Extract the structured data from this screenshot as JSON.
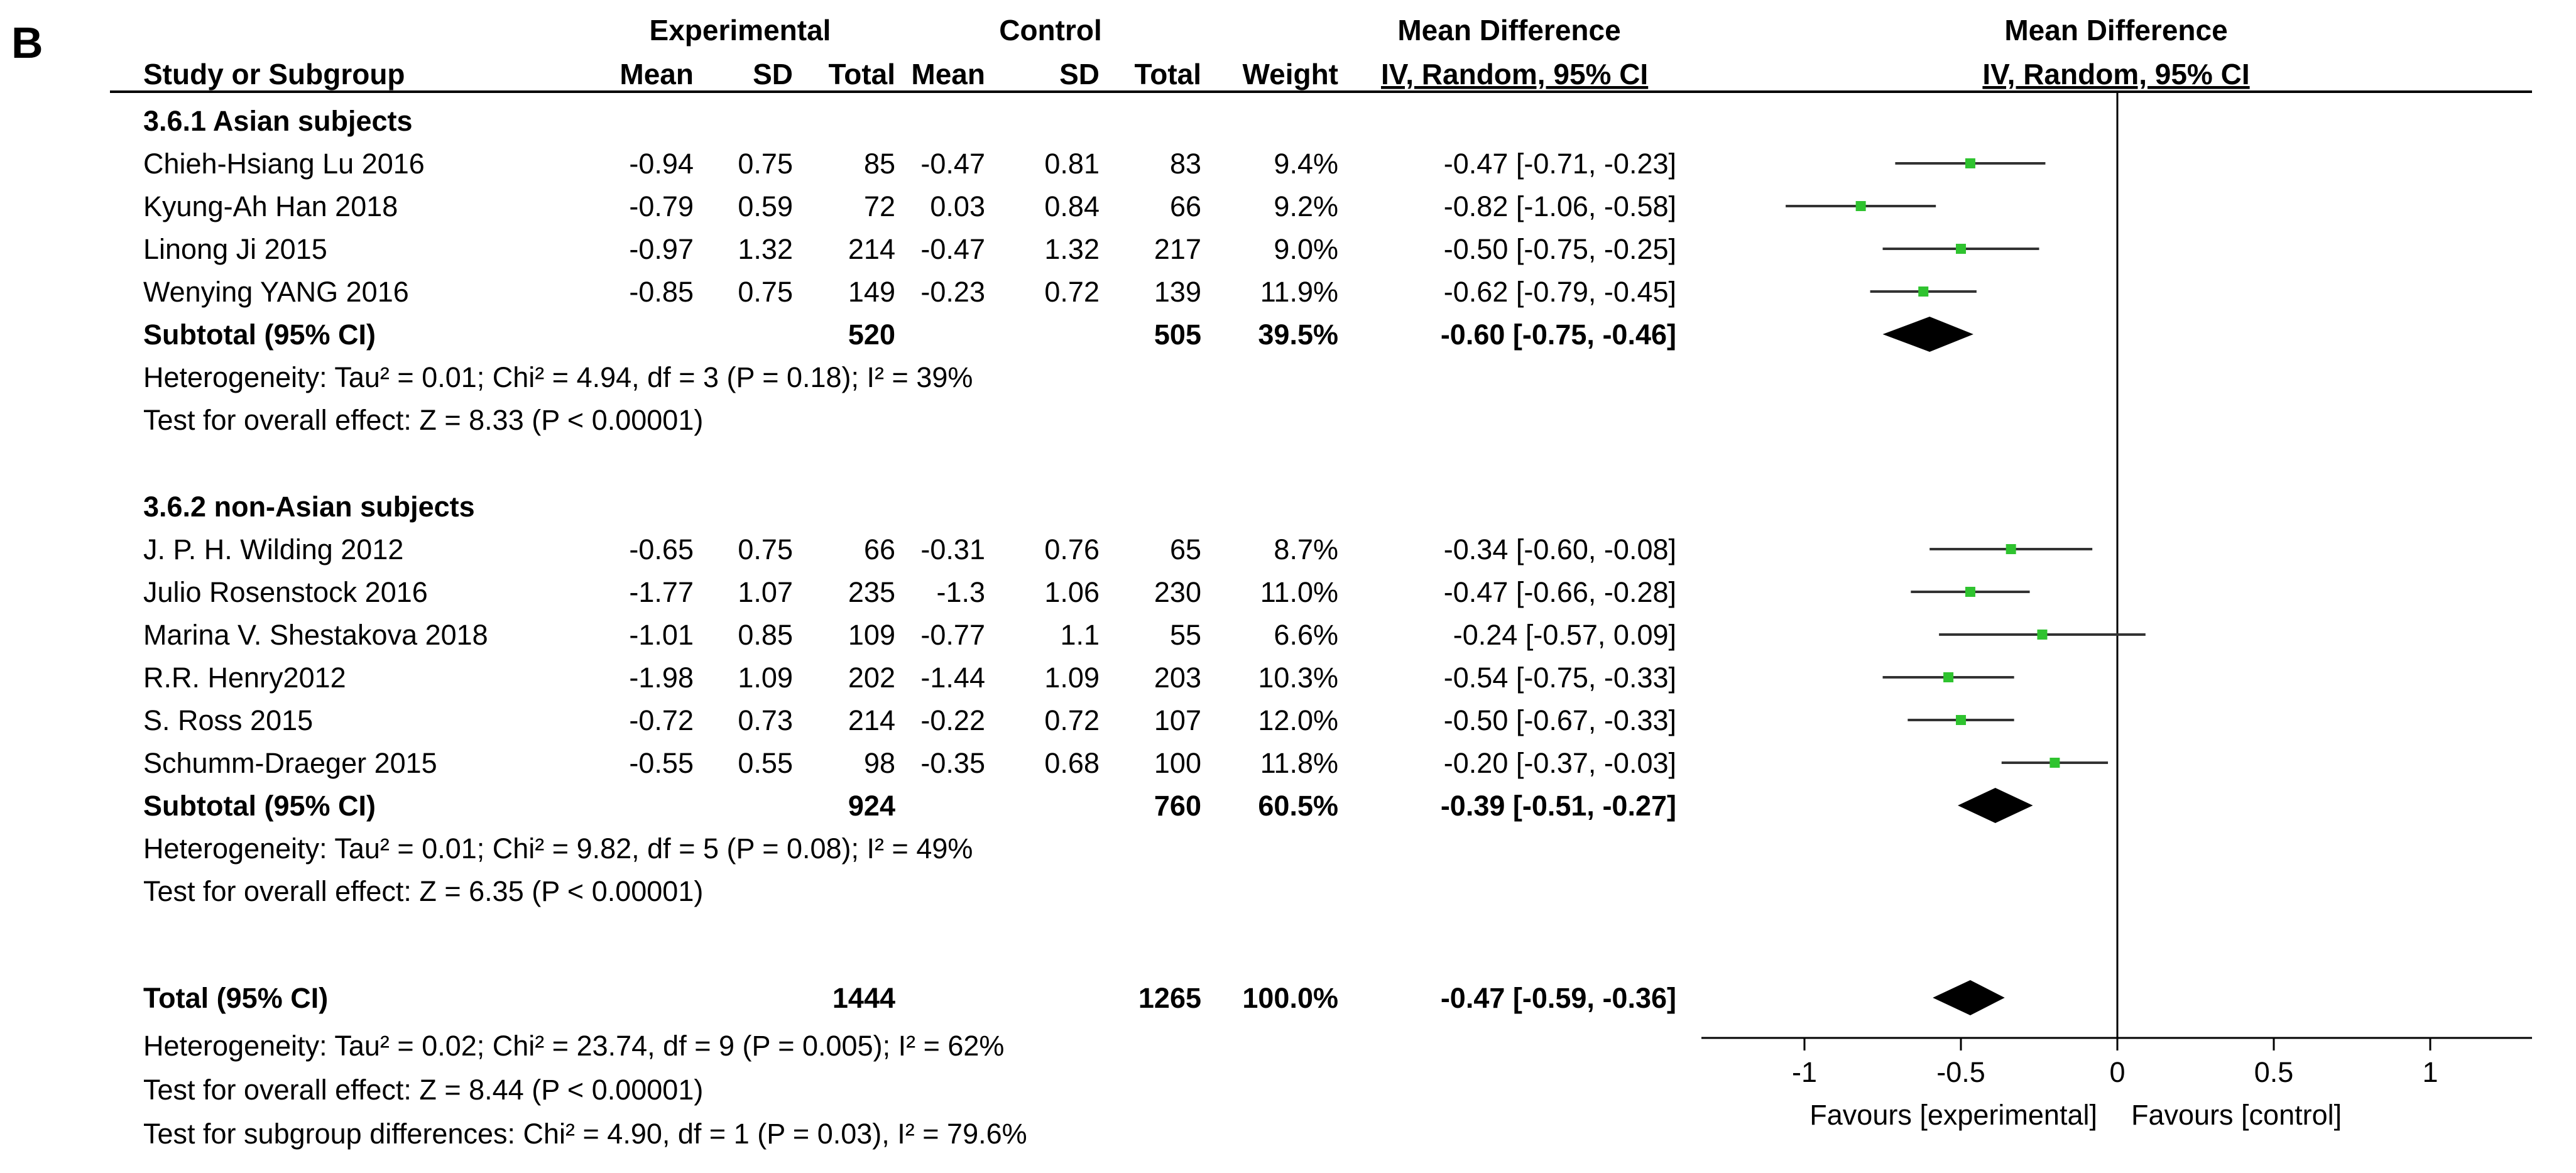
{
  "panel_label": "B",
  "header": {
    "group_experimental": "Experimental",
    "group_control": "Control",
    "group_md": "Mean Difference",
    "group_plot": "Mean Difference",
    "study": "Study or Subgroup",
    "mean": "Mean",
    "sd": "SD",
    "total": "Total",
    "weight": "Weight",
    "ci": "IV, Random, 95% CI",
    "plot_ci": "IV, Random, 95% CI"
  },
  "subgroups": [
    {
      "title": "3.6.1 Asian subjects",
      "studies": [
        {
          "name": "Chieh-Hsiang Lu  2016",
          "e_mean": "-0.94",
          "e_sd": "0.75",
          "e_total": "85",
          "c_mean": "-0.47",
          "c_sd": "0.81",
          "c_total": "83",
          "weight": "9.4%",
          "ci_text": "-0.47 [-0.71, -0.23]"
        },
        {
          "name": "Kyung-Ah Han  2018",
          "e_mean": "-0.79",
          "e_sd": "0.59",
          "e_total": "72",
          "c_mean": "0.03",
          "c_sd": "0.84",
          "c_total": "66",
          "weight": "9.2%",
          "ci_text": "-0.82 [-1.06, -0.58]"
        },
        {
          "name": "Linong Ji  2015",
          "e_mean": "-0.97",
          "e_sd": "1.32",
          "e_total": "214",
          "c_mean": "-0.47",
          "c_sd": "1.32",
          "c_total": "217",
          "weight": "9.0%",
          "ci_text": "-0.50 [-0.75, -0.25]"
        },
        {
          "name": "Wenying YANG  2016",
          "e_mean": "-0.85",
          "e_sd": "0.75",
          "e_total": "149",
          "c_mean": "-0.23",
          "c_sd": "0.72",
          "c_total": "139",
          "weight": "11.9%",
          "ci_text": "-0.62 [-0.79, -0.45]"
        }
      ],
      "subtotal": {
        "label": "Subtotal (95% CI)",
        "e_total": "520",
        "c_total": "505",
        "weight": "39.5%",
        "ci_text": "-0.60 [-0.75, -0.46]"
      },
      "heterogeneity": "Heterogeneity: Tau² = 0.01; Chi² = 4.94, df = 3 (P = 0.18); I² = 39%",
      "overall": "Test for overall effect: Z = 8.33 (P < 0.00001)"
    },
    {
      "title": "3.6.2 non-Asian subjects",
      "studies": [
        {
          "name": "J. P. H. Wilding  2012",
          "e_mean": "-0.65",
          "e_sd": "0.75",
          "e_total": "66",
          "c_mean": "-0.31",
          "c_sd": "0.76",
          "c_total": "65",
          "weight": "8.7%",
          "ci_text": "-0.34 [-0.60, -0.08]"
        },
        {
          "name": "Julio Rosenstock 2016",
          "e_mean": "-1.77",
          "e_sd": "1.07",
          "e_total": "235",
          "c_mean": "-1.3",
          "c_sd": "1.06",
          "c_total": "230",
          "weight": "11.0%",
          "ci_text": "-0.47 [-0.66, -0.28]"
        },
        {
          "name": "Marina V. Shestakova  2018",
          "e_mean": "-1.01",
          "e_sd": "0.85",
          "e_total": "109",
          "c_mean": "-0.77",
          "c_sd": "1.1",
          "c_total": "55",
          "weight": "6.6%",
          "ci_text": "-0.24 [-0.57, 0.09]"
        },
        {
          "name": "R.R. Henry2012",
          "e_mean": "-1.98",
          "e_sd": "1.09",
          "e_total": "202",
          "c_mean": "-1.44",
          "c_sd": "1.09",
          "c_total": "203",
          "weight": "10.3%",
          "ci_text": "-0.54 [-0.75, -0.33]"
        },
        {
          "name": "S. Ross  2015",
          "e_mean": "-0.72",
          "e_sd": "0.73",
          "e_total": "214",
          "c_mean": "-0.22",
          "c_sd": "0.72",
          "c_total": "107",
          "weight": "12.0%",
          "ci_text": "-0.50 [-0.67, -0.33]"
        },
        {
          "name": "Schumm-Draeger  2015",
          "e_mean": "-0.55",
          "e_sd": "0.55",
          "e_total": "98",
          "c_mean": "-0.35",
          "c_sd": "0.68",
          "c_total": "100",
          "weight": "11.8%",
          "ci_text": "-0.20 [-0.37, -0.03]"
        }
      ],
      "subtotal": {
        "label": "Subtotal (95% CI)",
        "e_total": "924",
        "c_total": "760",
        "weight": "60.5%",
        "ci_text": "-0.39 [-0.51, -0.27]"
      },
      "heterogeneity": "Heterogeneity: Tau² = 0.01; Chi² = 9.82, df = 5 (P = 0.08); I² = 49%",
      "overall": "Test for overall effect: Z = 6.35 (P < 0.00001)"
    }
  ],
  "total": {
    "label": "Total (95% CI)",
    "e_total": "1444",
    "c_total": "1265",
    "weight": "100.0%",
    "ci_text": "-0.47 [-0.59, -0.36]",
    "heterogeneity": "Heterogeneity: Tau² = 0.02; Chi² = 23.74, df = 9 (P = 0.005); I² = 62%",
    "overall": "Test for overall effect: Z = 8.44 (P < 0.00001)",
    "subgroup_diff": "Test for subgroup differences: Chi² = 4.90, df = 1 (P = 0.03), I² = 79.6%"
  },
  "axis": {
    "ticks": [
      "-1",
      "-0.5",
      "0",
      "0.5",
      "1"
    ],
    "favours_left": "Favours [experimental]",
    "favours_right": "Favours [control]"
  },
  "colors": {
    "marker": "#2fc32f",
    "line": "#000000",
    "ci_line": "#333333"
  },
  "chart_data": {
    "type": "forest",
    "xlim": [
      -1.5,
      1.5
    ],
    "xticks": [
      -1,
      -0.5,
      0,
      0.5,
      1
    ],
    "studies": [
      {
        "name": "Chieh-Hsiang Lu  2016",
        "md": -0.47,
        "lo": -0.71,
        "hi": -0.23,
        "weight": 9.4
      },
      {
        "name": "Kyung-Ah Han  2018",
        "md": -0.82,
        "lo": -1.06,
        "hi": -0.58,
        "weight": 9.2
      },
      {
        "name": "Linong Ji  2015",
        "md": -0.5,
        "lo": -0.75,
        "hi": -0.25,
        "weight": 9.0
      },
      {
        "name": "Wenying YANG  2016",
        "md": -0.62,
        "lo": -0.79,
        "hi": -0.45,
        "weight": 11.9
      },
      {
        "name": "J. P. H. Wilding  2012",
        "md": -0.34,
        "lo": -0.6,
        "hi": -0.08,
        "weight": 8.7
      },
      {
        "name": "Julio Rosenstock 2016",
        "md": -0.47,
        "lo": -0.66,
        "hi": -0.28,
        "weight": 11.0
      },
      {
        "name": "Marina V. Shestakova  2018",
        "md": -0.24,
        "lo": -0.57,
        "hi": 0.09,
        "weight": 6.6
      },
      {
        "name": "R.R. Henry2012",
        "md": -0.54,
        "lo": -0.75,
        "hi": -0.33,
        "weight": 10.3
      },
      {
        "name": "S. Ross  2015",
        "md": -0.5,
        "lo": -0.67,
        "hi": -0.33,
        "weight": 12.0
      },
      {
        "name": "Schumm-Draeger  2015",
        "md": -0.2,
        "lo": -0.37,
        "hi": -0.03,
        "weight": 11.8
      }
    ],
    "subtotals": [
      {
        "name": "Subtotal (95% CI) 3.6.1",
        "md": -0.6,
        "lo": -0.75,
        "hi": -0.46
      },
      {
        "name": "Subtotal (95% CI) 3.6.2",
        "md": -0.39,
        "lo": -0.51,
        "hi": -0.27
      }
    ],
    "total": {
      "md": -0.47,
      "lo": -0.59,
      "hi": -0.36
    }
  }
}
